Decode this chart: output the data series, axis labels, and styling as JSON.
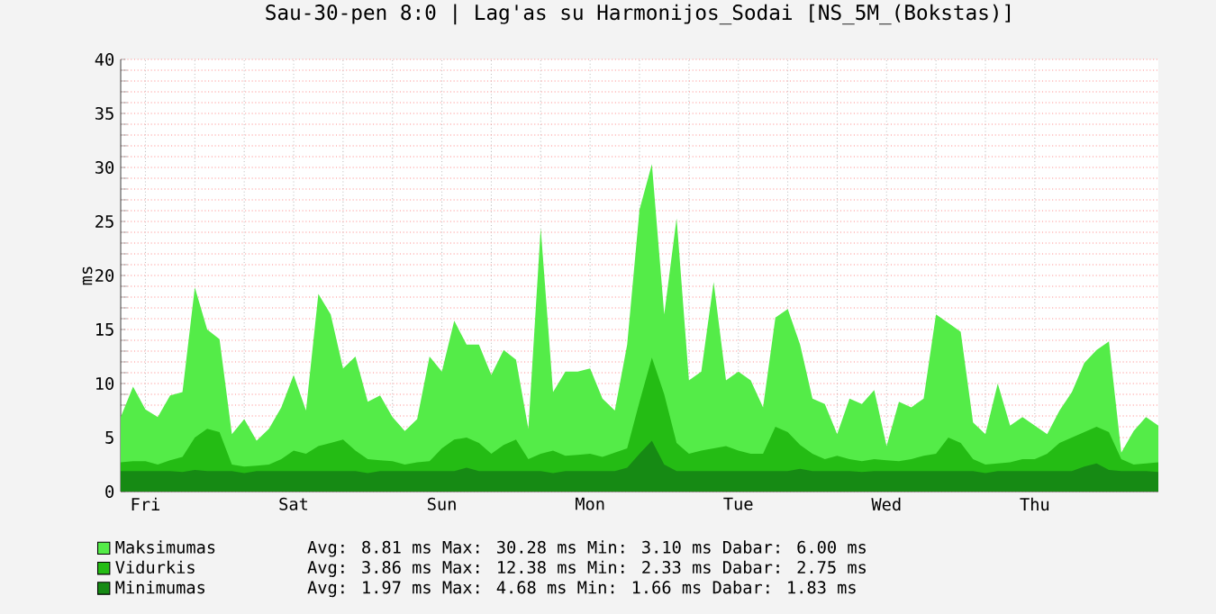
{
  "chart_data": {
    "type": "area",
    "title": "Sau-30-pen 8:0 | Lag'as su Harmonijos_Sodai [NS_5M_(Bokstas)]",
    "ylabel": "ms",
    "categories": [
      null,
      null,
      "Fri",
      null,
      null,
      null,
      null,
      null,
      null,
      null,
      null,
      null,
      null,
      null,
      "Sat",
      null,
      null,
      null,
      null,
      null,
      null,
      null,
      null,
      null,
      null,
      null,
      "Sun",
      null,
      null,
      null,
      null,
      null,
      null,
      null,
      null,
      null,
      null,
      null,
      "Mon",
      null,
      null,
      null,
      null,
      null,
      null,
      null,
      null,
      null,
      null,
      null,
      "Tue",
      null,
      null,
      null,
      null,
      null,
      null,
      null,
      null,
      null,
      null,
      null,
      "Wed",
      null,
      null,
      null,
      null,
      null,
      null,
      null,
      null,
      null,
      null,
      null,
      "Thu",
      null,
      null,
      null,
      null,
      null,
      null,
      null,
      null,
      null,
      null
    ],
    "ylim": [
      0,
      40
    ],
    "yticks": [
      0,
      5,
      10,
      15,
      20,
      25,
      30,
      35,
      40
    ],
    "grid": true,
    "legend": "bottom left",
    "marker": "none",
    "annotations": [
      "Avg: 8.81 ms Max: 30.28 ms Min: 3.10 ms Dabar: 6.00 ms",
      "Avg: 3.86 ms Max: 12.38 ms Min: 2.33 ms Dabar: 2.75 ms",
      "Avg: 1.97 ms Max: 4.68 ms Min: 1.66 ms Dabar: 1.83 ms"
    ],
    "series": [
      {
        "name": "Maksimumas",
        "color": "#54ec48",
        "values": [
          6.9,
          9.7,
          7.6,
          6.9,
          8.9,
          9.2,
          18.9,
          15.0,
          14.1,
          5.3,
          6.7,
          4.7,
          5.8,
          7.8,
          10.8,
          7.5,
          18.3,
          16.4,
          11.4,
          12.5,
          8.3,
          8.9,
          6.9,
          5.6,
          6.7,
          12.5,
          11.1,
          15.8,
          13.6,
          13.6,
          10.8,
          13.1,
          12.2,
          5.8,
          24.4,
          9.2,
          11.1,
          11.1,
          11.4,
          8.6,
          7.5,
          13.6,
          26.1,
          30.3,
          16.4,
          25.3,
          10.3,
          11.1,
          19.4,
          10.3,
          11.1,
          10.3,
          7.8,
          16.1,
          16.9,
          13.6,
          8.6,
          8.1,
          5.3,
          8.6,
          8.1,
          9.4,
          4.2,
          8.3,
          7.8,
          8.6,
          16.4,
          15.6,
          14.8,
          6.4,
          5.3,
          10.0,
          6.1,
          6.9,
          6.1,
          5.3,
          7.5,
          9.2,
          11.9,
          13.1,
          13.9,
          3.6,
          5.6,
          6.9,
          6.1
        ]
      },
      {
        "name": "Vidurkis",
        "color": "#24bc14",
        "values": [
          2.7,
          2.8,
          2.8,
          2.5,
          2.9,
          3.2,
          5.0,
          5.8,
          5.5,
          2.5,
          2.3,
          2.4,
          2.5,
          3.0,
          3.8,
          3.5,
          4.2,
          4.5,
          4.8,
          3.8,
          3.0,
          2.9,
          2.8,
          2.5,
          2.7,
          2.8,
          4.0,
          4.8,
          5.0,
          4.5,
          3.5,
          4.3,
          4.8,
          3.0,
          3.5,
          3.8,
          3.3,
          3.4,
          3.5,
          3.2,
          3.6,
          4.0,
          8.3,
          12.4,
          9.0,
          4.5,
          3.5,
          3.8,
          4.0,
          4.2,
          3.8,
          3.5,
          3.5,
          6.0,
          5.5,
          4.3,
          3.5,
          3.0,
          3.3,
          3.0,
          2.8,
          3.0,
          2.9,
          2.8,
          3.0,
          3.3,
          3.5,
          5.0,
          4.5,
          3.0,
          2.5,
          2.6,
          2.7,
          3.0,
          3.0,
          3.5,
          4.5,
          5.0,
          5.5,
          6.0,
          5.5,
          3.0,
          2.5,
          2.6,
          2.7
        ]
      },
      {
        "name": "Minimumas",
        "color": "#168a14",
        "values": [
          1.9,
          1.9,
          1.9,
          1.9,
          1.9,
          1.8,
          2.0,
          1.9,
          1.9,
          1.9,
          1.7,
          1.9,
          1.9,
          1.9,
          1.9,
          1.9,
          1.9,
          1.9,
          1.9,
          1.9,
          1.7,
          1.9,
          1.9,
          1.9,
          1.9,
          1.9,
          1.9,
          1.9,
          2.2,
          1.9,
          1.9,
          1.9,
          1.9,
          1.9,
          1.9,
          1.7,
          1.9,
          1.9,
          1.9,
          1.9,
          1.9,
          2.2,
          3.5,
          4.7,
          2.5,
          1.9,
          1.9,
          1.9,
          1.9,
          1.9,
          1.9,
          1.9,
          1.9,
          1.9,
          1.9,
          2.1,
          1.9,
          1.9,
          1.9,
          1.9,
          1.8,
          1.9,
          1.9,
          1.9,
          1.9,
          1.9,
          1.9,
          1.9,
          1.9,
          1.9,
          1.7,
          1.9,
          1.9,
          1.9,
          1.9,
          1.9,
          1.9,
          1.9,
          2.3,
          2.6,
          2.0,
          1.9,
          1.9,
          1.9,
          1.8
        ]
      }
    ]
  }
}
